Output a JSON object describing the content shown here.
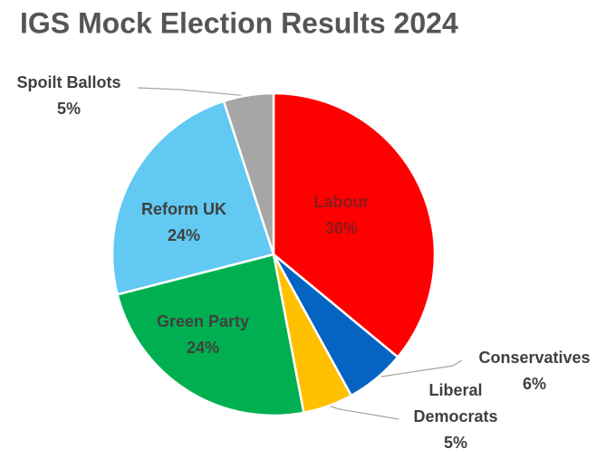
{
  "chart_data": {
    "type": "pie",
    "title": "IGS Mock Election Results 2024",
    "categories": [
      "Labour",
      "Conservatives",
      "Liberal Democrats",
      "Green Party",
      "Reform UK",
      "Spoilt Ballots"
    ],
    "values": [
      36,
      6,
      5,
      24,
      24,
      5
    ],
    "value_labels": [
      "36%",
      "6%",
      "5%",
      "24%",
      "24%",
      "5%"
    ],
    "colors": [
      "#ff0000",
      "#0563c1",
      "#ffc000",
      "#00b050",
      "#61c9f2",
      "#a6a6a6"
    ],
    "start_angle": 0,
    "direction": "clockwise"
  }
}
